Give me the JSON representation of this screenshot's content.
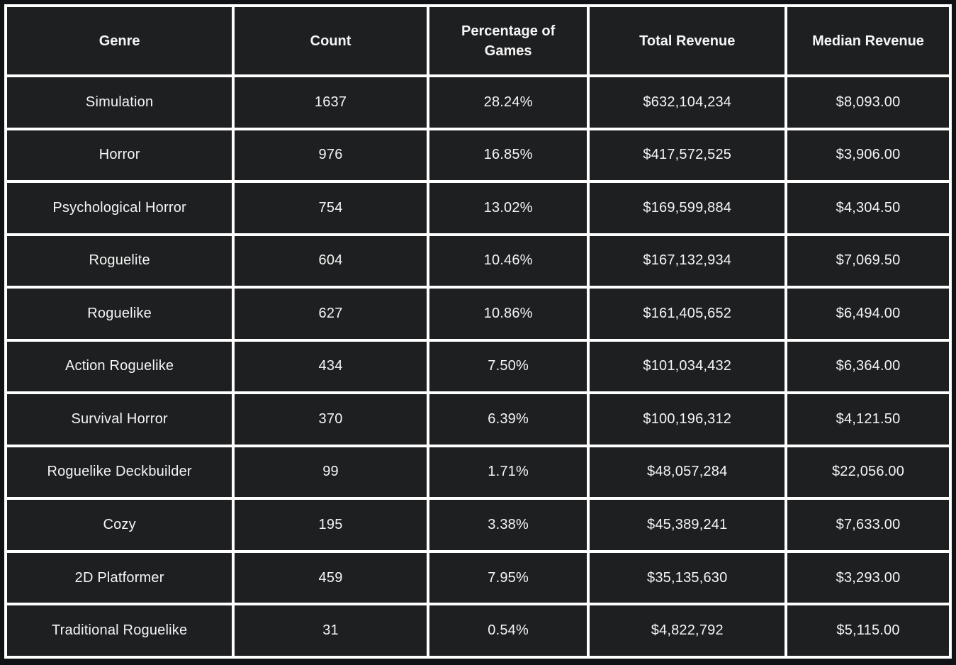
{
  "chart_data": {
    "type": "table",
    "columns": [
      "Genre",
      "Count",
      "Percentage of Games",
      "Total Revenue",
      "Median Revenue"
    ],
    "rows": [
      [
        "Simulation",
        "1637",
        "28.24%",
        "$632,104,234",
        "$8,093.00"
      ],
      [
        "Horror",
        "976",
        "16.85%",
        "$417,572,525",
        "$3,906.00"
      ],
      [
        "Psychological Horror",
        "754",
        "13.02%",
        "$169,599,884",
        "$4,304.50"
      ],
      [
        "Roguelite",
        "604",
        "10.46%",
        "$167,132,934",
        "$7,069.50"
      ],
      [
        "Roguelike",
        "627",
        "10.86%",
        "$161,405,652",
        "$6,494.00"
      ],
      [
        "Action Roguelike",
        "434",
        "7.50%",
        "$101,034,432",
        "$6,364.00"
      ],
      [
        "Survival Horror",
        "370",
        "6.39%",
        "$100,196,312",
        "$4,121.50"
      ],
      [
        "Roguelike Deckbuilder",
        "99",
        "1.71%",
        "$48,057,284",
        "$22,056.00"
      ],
      [
        "Cozy",
        "195",
        "3.38%",
        "$45,389,241",
        "$7,633.00"
      ],
      [
        "2D Platformer",
        "459",
        "7.95%",
        "$35,135,630",
        "$3,293.00"
      ],
      [
        "Traditional Roguelike",
        "31",
        "0.54%",
        "$4,822,792",
        "$5,115.00"
      ]
    ],
    "title": "",
    "legend": "none",
    "grid": "on"
  },
  "colors": {
    "cell_background": "#1e1f21",
    "grid_border": "#ffffff",
    "page_background": "#111215",
    "text": "#f5f5f5"
  }
}
